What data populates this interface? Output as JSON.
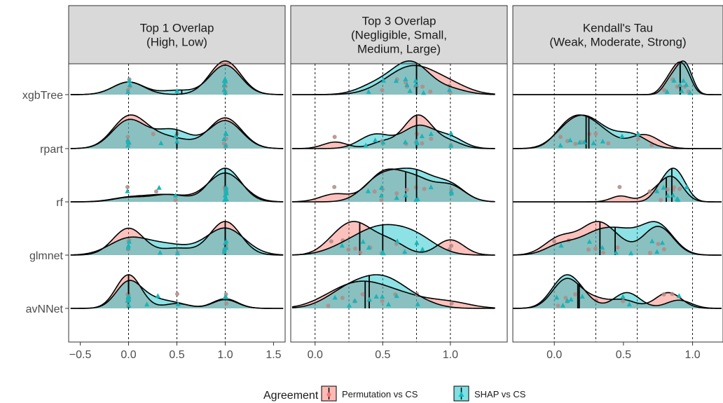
{
  "chart_data": {
    "type": "density-ridge",
    "categories": [
      "xgbTree",
      "rpart",
      "rf",
      "glmnet",
      "avNNet"
    ],
    "legend": {
      "title": "Agreement",
      "position": "bottom",
      "series": [
        {
          "name": "Permutation vs CS",
          "color": "#F8766D"
        },
        {
          "name": "SHAP vs CS",
          "color": "#00BFC4"
        }
      ]
    },
    "panels": [
      {
        "title_line1": "Top 1 Overlap",
        "title_line2": "(High, Low)",
        "title_line3": "",
        "xlim": [
          -0.62,
          1.62
        ],
        "xticks": [
          -0.5,
          0.0,
          0.5,
          1.0,
          1.5
        ],
        "xtick_labels": [
          "−0.5",
          "0.0",
          "0.5",
          "1.0",
          "1.5"
        ],
        "cutoffs": [
          0.0,
          0.5,
          1.0
        ],
        "density_range": [
          -0.6,
          1.6
        ],
        "rows": {
          "xgbTree": {
            "perm": {
              "means": [
                0.5
              ],
              "points": [
                0,
                0,
                0,
                1,
                1,
                1,
                1,
                1,
                1,
                1,
                1
              ],
              "bw": 0.16
            },
            "shap": {
              "means": [
                0.55
              ],
              "points": [
                0,
                0,
                0,
                0.5,
                1,
                1,
                1,
                1,
                1,
                1,
                1
              ],
              "bw": 0.16
            }
          },
          "rpart": {
            "perm": {
              "means": [
                0.5
              ],
              "points": [
                0,
                0,
                0,
                0,
                0.25,
                0.5,
                1,
                1,
                1,
                1
              ],
              "bw": 0.17
            },
            "shap": {
              "means": [
                0.5
              ],
              "points": [
                0,
                0,
                0,
                0,
                0.33,
                0.5,
                0.5,
                1,
                1,
                1,
                1
              ],
              "bw": 0.17
            }
          },
          "rf": {
            "perm": {
              "means": [
                1.0
              ],
              "points": [
                0,
                0.3,
                0.5,
                1,
                1,
                1,
                1,
                1,
                1,
                1
              ],
              "bw": 0.18
            },
            "shap": {
              "means": [
                1.0
              ],
              "points": [
                0,
                0.33,
                0.5,
                1,
                1,
                1,
                1,
                1,
                1,
                1,
                1
              ],
              "bw": 0.16
            }
          },
          "glmnet": {
            "perm": {
              "means": [
                1.0
              ],
              "points": [
                0,
                0,
                0,
                0,
                0.5,
                1,
                1,
                1,
                1,
                1
              ],
              "bw": 0.16
            },
            "shap": {
              "means": [
                1.0
              ],
              "points": [
                0,
                0,
                0,
                0.33,
                0.5,
                1,
                1,
                1,
                1,
                1
              ],
              "bw": 0.2
            }
          },
          "avNNet": {
            "perm": {
              "means": [
                0.0
              ],
              "points": [
                0,
                0,
                0,
                0,
                0,
                0,
                0,
                0.5,
                1,
                1
              ],
              "bw": 0.13
            },
            "shap": {
              "means": [
                0.0
              ],
              "points": [
                0,
                0,
                0,
                0,
                0,
                0,
                0.2,
                0.3,
                0.5,
                1,
                1
              ],
              "bw": 0.13
            }
          }
        }
      },
      {
        "title_line1": "Top 3 Overlap",
        "title_line2": "(Negligible, Small,",
        "title_line3": "Medium, Large)",
        "xlim": [
          -0.18,
          1.42
        ],
        "xticks": [
          0.0,
          0.5,
          1.0
        ],
        "xtick_labels": [
          "0.0",
          "0.5",
          "1.0"
        ],
        "cutoffs": [
          0.0,
          0.25,
          0.5,
          0.75,
          1.0
        ],
        "density_range": [
          -0.17,
          1.33
        ],
        "rows": {
          "xgbTree": {
            "perm": {
              "means": [
                0.75
              ],
              "points": [
                0.5,
                0.6,
                0.67,
                0.75,
                0.75,
                0.8,
                0.85,
                1,
                1,
                0.67
              ],
              "bw": 0.14
            },
            "shap": {
              "means": [
                0.75
              ],
              "points": [
                0.4,
                0.5,
                0.67,
                0.7,
                0.75,
                0.75,
                0.8,
                1,
                0.67,
                0.6
              ],
              "bw": 0.12
            }
          },
          "rpart": {
            "perm": {
              "means": [
                0.75
              ],
              "points": [
                0.15,
                0.5,
                0.67,
                0.75,
                0.75,
                0.75,
                0.8,
                0.85,
                1
              ],
              "bw": 0.09
            },
            "shap": {
              "means": [
                0.75
              ],
              "points": [
                0.38,
                0.45,
                0.5,
                0.67,
                0.75,
                0.75,
                0.8,
                0.85,
                1,
                1
              ],
              "bw": 0.1
            }
          },
          "rf": {
            "perm": {
              "means": [
                0.67
              ],
              "points": [
                0.15,
                0.45,
                0.5,
                0.5,
                0.67,
                0.75,
                0.8,
                1,
                1,
                0.6
              ],
              "bw": 0.11
            },
            "shap": {
              "means": [
                0.75
              ],
              "points": [
                0.4,
                0.5,
                0.5,
                0.67,
                0.75,
                0.75,
                0.85,
                1,
                1,
                0.6
              ],
              "bw": 0.11
            }
          },
          "glmnet": {
            "perm": {
              "means": [
                0.33
              ],
              "points": [
                0.12,
                0.2,
                0.25,
                0.3,
                0.33,
                0.4,
                0.5,
                0.6,
                1,
                1
              ],
              "bw": 0.1
            },
            "shap": {
              "means": [
                0.5
              ],
              "points": [
                0.2,
                0.35,
                0.4,
                0.5,
                0.5,
                0.6,
                0.67,
                0.75,
                0.8
              ],
              "bw": 0.14
            }
          },
          "avNNet": {
            "perm": {
              "means": [
                0.37
              ],
              "points": [
                0.1,
                0.2,
                0.3,
                0.35,
                0.4,
                0.5,
                0.6,
                0.75,
                1.0
              ],
              "bw": 0.15
            },
            "shap": {
              "means": [
                0.4
              ],
              "points": [
                0.15,
                0.25,
                0.3,
                0.4,
                0.45,
                0.5,
                0.55,
                0.6,
                0.75
              ],
              "bw": 0.14
            }
          }
        }
      },
      {
        "title_line1": "Kendall's Tau",
        "title_line2": "(Weak, Moderate, Strong)",
        "title_line3": "",
        "xlim": [
          -0.3,
          1.22
        ],
        "xticks": [
          0.0,
          0.5,
          1.0
        ],
        "xtick_labels": [
          "0.0",
          "0.5",
          "1.0"
        ],
        "cutoffs": [
          0.0,
          0.3,
          0.6,
          1.0
        ],
        "density_range": [
          -0.3,
          1.21
        ],
        "rows": {
          "xgbTree": {
            "perm": {
              "means": [
                0.91
              ],
              "points": [
                0.8,
                0.85,
                0.88,
                0.9,
                0.92,
                0.95,
                0.97
              ],
              "bw": 0.045
            },
            "shap": {
              "means": [
                0.91
              ],
              "points": [
                0.82,
                0.86,
                0.9,
                0.92,
                0.94,
                0.96,
                0.98
              ],
              "bw": 0.045
            }
          },
          "rpart": {
            "perm": {
              "means": [
                0.23
              ],
              "points": [
                0.05,
                0.1,
                0.15,
                0.2,
                0.25,
                0.3,
                0.4,
                0.6,
                0.7
              ],
              "bw": 0.09
            },
            "shap": {
              "means": [
                0.25
              ],
              "points": [
                0.05,
                0.12,
                0.18,
                0.22,
                0.28,
                0.35,
                0.5,
                0.6
              ],
              "bw": 0.1
            }
          },
          "rf": {
            "perm": {
              "means": [
                0.81
              ],
              "points": [
                0.48,
                0.7,
                0.78,
                0.82,
                0.85,
                0.87,
                0.9
              ],
              "bw": 0.07
            },
            "shap": {
              "means": [
                0.85
              ],
              "points": [
                0.75,
                0.8,
                0.83,
                0.86,
                0.88,
                0.9,
                0.95
              ],
              "bw": 0.055
            }
          },
          "glmnet": {
            "perm": {
              "means": [
                0.33
              ],
              "points": [
                0.0,
                0.1,
                0.25,
                0.3,
                0.35,
                0.45,
                0.7,
                0.75,
                0.8
              ],
              "bw": 0.1
            },
            "shap": {
              "means": [
                0.44
              ],
              "points": [
                0.05,
                0.25,
                0.35,
                0.45,
                0.55,
                0.7,
                0.75,
                0.78
              ],
              "bw": 0.11
            }
          },
          "avNNet": {
            "perm": {
              "means": [
                0.17
              ],
              "points": [
                0.03,
                0.08,
                0.1,
                0.15,
                0.3,
                0.5,
                0.8,
                0.85
              ],
              "bw": 0.09
            },
            "shap": {
              "means": [
                0.18
              ],
              "points": [
                0.02,
                0.06,
                0.1,
                0.12,
                0.2,
                0.5,
                0.55,
                0.9
              ],
              "bw": 0.09
            }
          }
        }
      }
    ]
  }
}
